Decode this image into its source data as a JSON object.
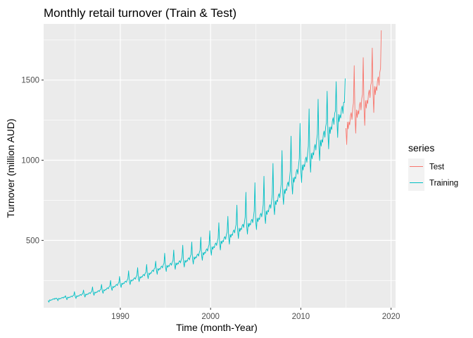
{
  "chart_data": {
    "type": "line",
    "title": "Monthly retail turnover (Train & Test)",
    "xlabel": "Time (month-Year)",
    "ylabel": "Turnover (million AUD)",
    "xlim": [
      1981.5,
      2020.5
    ],
    "ylim": [
      80,
      1850
    ],
    "x_ticks": [
      1990,
      2000,
      2010,
      2020
    ],
    "y_ticks": [
      500,
      1000,
      1500
    ],
    "grid": true,
    "legend": {
      "title": "series",
      "position": "right"
    },
    "series": [
      {
        "name": "Training",
        "color": "#00BFC4",
        "start_year": 1982,
        "end_year": 2014,
        "x": [
          1982,
          1983,
          1984,
          1985,
          1986,
          1987,
          1988,
          1989,
          1990,
          1991,
          1992,
          1993,
          1994,
          1995,
          1996,
          1997,
          1998,
          1999,
          2000,
          2001,
          2002,
          2003,
          2004,
          2005,
          2006,
          2007,
          2008,
          2009,
          2010,
          2011,
          2012,
          2013,
          2014
        ],
        "base_level": [
          125,
          135,
          142,
          150,
          160,
          172,
          185,
          205,
          225,
          245,
          265,
          285,
          315,
          335,
          350,
          365,
          385,
          410,
          445,
          480,
          520,
          560,
          590,
          620,
          660,
          720,
          790,
          860,
          940,
          1010,
          1090,
          1170,
          1250
        ],
        "december_peak": [
          140,
          155,
          180,
          190,
          210,
          225,
          250,
          275,
          310,
          330,
          350,
          370,
          420,
          440,
          470,
          490,
          520,
          560,
          610,
          650,
          720,
          800,
          860,
          900,
          980,
          1060,
          1150,
          1230,
          1320,
          1380,
          1430,
          1490,
          1510
        ]
      },
      {
        "name": "Test",
        "color": "#F8766D",
        "start_year": 2015,
        "end_year": 2018,
        "x": [
          2015,
          2016,
          2017,
          2018
        ],
        "base_level": [
          1200,
          1280,
          1330,
          1420
        ],
        "december_peak": [
          1590,
          1640,
          1700,
          1810
        ]
      }
    ]
  }
}
